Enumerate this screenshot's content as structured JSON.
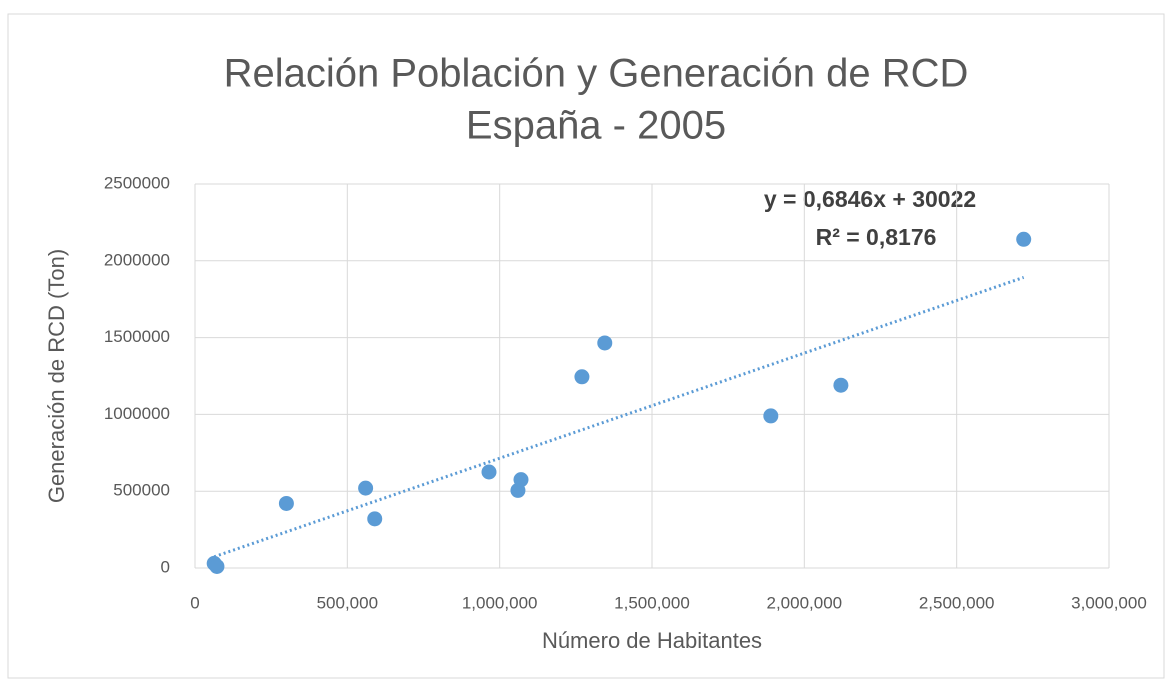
{
  "chart_data": {
    "type": "scatter",
    "title": [
      "Relación Población y Generación de RCD",
      "España - 2005"
    ],
    "xlabel": "Número de Habitantes",
    "ylabel": "Generación de RCD (Ton)",
    "x": [
      63000,
      72000,
      300000,
      560000,
      590000,
      965000,
      1060000,
      1070000,
      1270000,
      1345000,
      1890000,
      2120000,
      2720000
    ],
    "series": [
      {
        "color": "#5b9bd5",
        "values": [
          30000,
          10000,
          420000,
          520000,
          320000,
          625000,
          505000,
          575000,
          1245000,
          1465000,
          990000,
          1190000,
          2140000
        ]
      }
    ],
    "xlim": [
      0,
      3000000
    ],
    "xticks": [
      0,
      {
        "value": 500000,
        "label": "500,000"
      },
      {
        "value": 1000000,
        "label": "1,000,000"
      },
      {
        "value": 1500000,
        "label": "1,500,000"
      },
      {
        "value": 2000000,
        "label": "2,000,000"
      },
      {
        "value": 2500000,
        "label": "2,500,000"
      },
      {
        "value": 3000000,
        "label": "3,000,000"
      }
    ],
    "ylim": [
      0,
      2500000
    ],
    "yticks": [
      0,
      500000,
      1000000,
      1500000,
      2000000,
      2500000
    ],
    "grid": true,
    "trendline": {
      "slope": 0.6846,
      "intercept": 30022,
      "color": "#5b9bd5",
      "equation": "y = 0,6846x + 30022",
      "r2": "R² = 0,8176"
    }
  }
}
